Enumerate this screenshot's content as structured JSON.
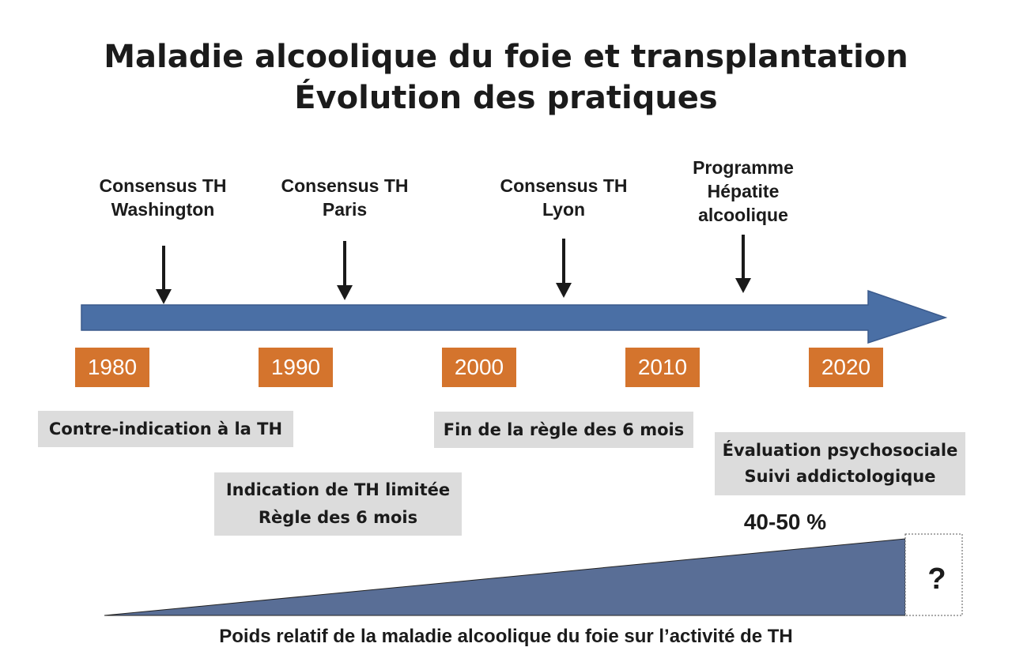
{
  "title": {
    "line1": "Maladie alcoolique du foie et transplantation",
    "line2": "Évolution des pratiques"
  },
  "events": [
    {
      "lines": [
        "Consensus TH",
        "Washington"
      ]
    },
    {
      "lines": [
        "Consensus TH",
        "Paris"
      ]
    },
    {
      "lines": [
        "Consensus TH",
        "Lyon"
      ]
    },
    {
      "lines": [
        "Programme",
        "Hépatite",
        "alcoolique"
      ]
    }
  ],
  "years": [
    "1980",
    "1990",
    "2000",
    "2010",
    "2020"
  ],
  "boxes": {
    "contraindication": {
      "lines": [
        "Contre-indication à la TH"
      ]
    },
    "fin_regle": {
      "lines": [
        "Fin de la règle des 6 mois"
      ]
    },
    "evaluation": {
      "lines": [
        "Évaluation psychosociale",
        "Suivi addictologique"
      ]
    },
    "indication_limitee": {
      "lines": [
        "Indication de TH limitée",
        "Règle des 6 mois"
      ]
    }
  },
  "wedge": {
    "percentage_label": "40-50 %",
    "unknown_label": "?",
    "caption": "Poids relatif de la maladie alcoolique du foie sur l’activité de TH"
  },
  "colors": {
    "timeline_arrow": "#4a6fa5",
    "year_box": "#d4742d",
    "note_box": "#dcdcdc",
    "wedge": "#596e96"
  }
}
